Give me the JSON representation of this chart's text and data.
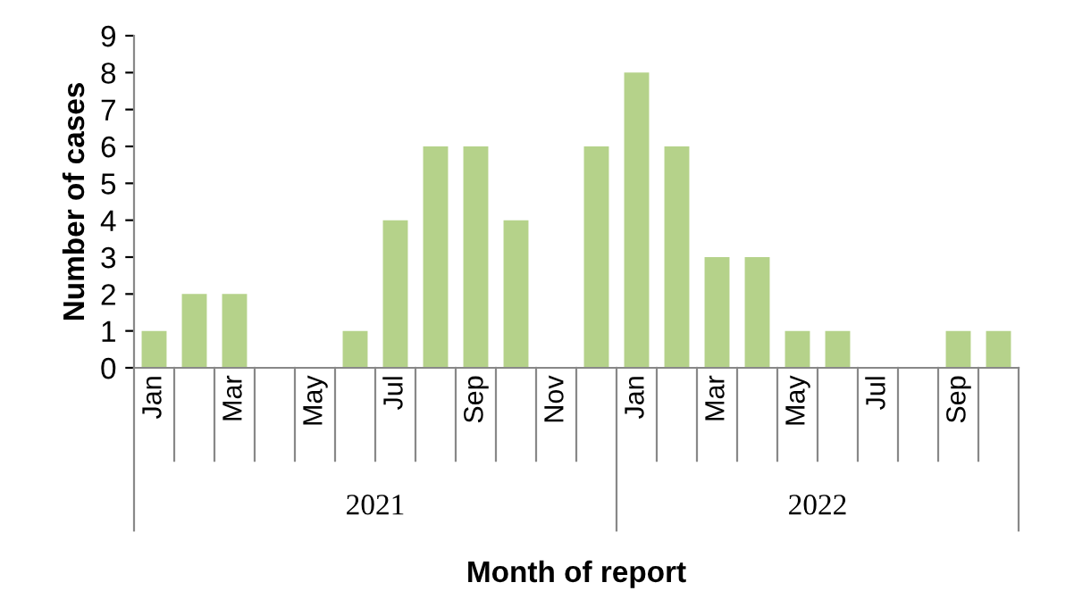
{
  "chart_data": {
    "type": "bar",
    "xlabel": "Month of report",
    "ylabel": "Number of cases",
    "categories": [
      "Jan",
      null,
      "Mar",
      null,
      "May",
      null,
      "Jul",
      null,
      "Sep",
      null,
      "Nov",
      null,
      "Jan",
      null,
      "Mar",
      null,
      "May",
      null,
      "Jul",
      null,
      "Sep",
      null
    ],
    "values": [
      1,
      2,
      2,
      0,
      0,
      1,
      4,
      6,
      6,
      4,
      0,
      6,
      8,
      6,
      3,
      3,
      1,
      1,
      0,
      0,
      1,
      1
    ],
    "color": "#b5d28a",
    "ylim": [
      0,
      9
    ],
    "yticks": [
      0,
      1,
      2,
      3,
      4,
      5,
      6,
      7,
      8,
      9
    ],
    "annotations": [
      "2021",
      "2022"
    ],
    "grid": false,
    "legend": false
  }
}
